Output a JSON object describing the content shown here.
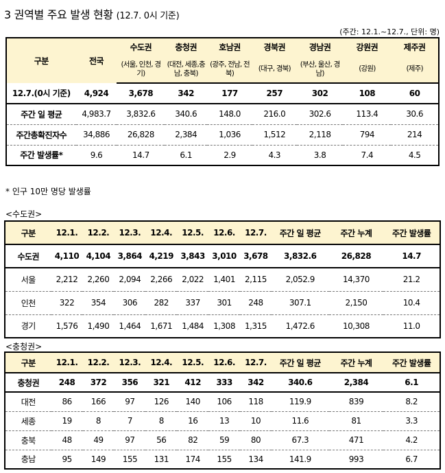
{
  "title": {
    "main": "3 권역별 주요 발생 현황",
    "sub": "(12.7. 0시 기준)"
  },
  "unit": "(주간: 12.1.~12.7., 단위: 명)",
  "regional": {
    "headers": [
      "구분",
      "전국",
      "수도권",
      "충청권",
      "호남권",
      "경북권",
      "경남권",
      "강원권",
      "제주권"
    ],
    "subheaders": [
      "",
      "",
      "(서울, 인천, 경기)",
      "(대전, 세종,충남, 충북)",
      "(광주, 전남, 전북)",
      "(대구, 경북)",
      "(부산, 울산, 경남)",
      "(강원)",
      "(제주)"
    ],
    "rows": [
      [
        "12.7.(0시 기준)",
        "4,924",
        "3,678",
        "342",
        "177",
        "257",
        "302",
        "108",
        "60"
      ],
      [
        "주간 일 평균",
        "4,983.7",
        "3,832.6",
        "340.6",
        "148.0",
        "216.0",
        "302.6",
        "113.4",
        "30.6"
      ],
      [
        "주간총확진자수",
        "34,886",
        "26,828",
        "2,384",
        "1,036",
        "1,512",
        "2,118",
        "794",
        "214"
      ],
      [
        "주간 발생률*",
        "9.6",
        "14.7",
        "6.1",
        "2.9",
        "4.3",
        "3.8",
        "7.4",
        "4.5"
      ]
    ]
  },
  "note": "* 인구 10만 명당 발생률",
  "capital": {
    "label": "<수도권>",
    "headers": [
      "구분",
      "12.1.",
      "12.2.",
      "12.3.",
      "12.4.",
      "12.5.",
      "12.6.",
      "12.7.",
      "주간 일 평균",
      "주간 누계",
      "주간 발생률"
    ],
    "rows": [
      [
        "수도권",
        "4,110",
        "4,104",
        "3,864",
        "4,219",
        "3,843",
        "3,010",
        "3,678",
        "3,832.6",
        "26,828",
        "14.7"
      ],
      [
        "서울",
        "2,212",
        "2,260",
        "2,094",
        "2,266",
        "2,022",
        "1,401",
        "2,115",
        "2,052.9",
        "14,370",
        "21.2"
      ],
      [
        "인천",
        "322",
        "354",
        "306",
        "282",
        "337",
        "301",
        "248",
        "307.1",
        "2,150",
        "10.4"
      ],
      [
        "경기",
        "1,576",
        "1,490",
        "1,464",
        "1,671",
        "1,484",
        "1,308",
        "1,315",
        "1,472.6",
        "10,308",
        "11.0"
      ]
    ]
  },
  "chungcheong": {
    "label": "<충청권>",
    "headers": [
      "구분",
      "12.1.",
      "12.2.",
      "12.3.",
      "12.4.",
      "12.5.",
      "12.6.",
      "12.7.",
      "주간 일 평균",
      "주간 누계",
      "주간 발생률"
    ],
    "rows": [
      [
        "충청권",
        "248",
        "372",
        "356",
        "321",
        "412",
        "333",
        "342",
        "340.6",
        "2,384",
        "6.1"
      ],
      [
        "대전",
        "86",
        "166",
        "97",
        "126",
        "140",
        "106",
        "118",
        "119.9",
        "839",
        "8.2"
      ],
      [
        "세종",
        "19",
        "8",
        "7",
        "8",
        "16",
        "13",
        "10",
        "11.6",
        "81",
        "3.3"
      ],
      [
        "충북",
        "48",
        "49",
        "97",
        "56",
        "82",
        "59",
        "80",
        "67.3",
        "471",
        "4.2"
      ],
      [
        "충남",
        "95",
        "149",
        "155",
        "131",
        "174",
        "155",
        "134",
        "141.9",
        "993",
        "6.7"
      ]
    ]
  }
}
